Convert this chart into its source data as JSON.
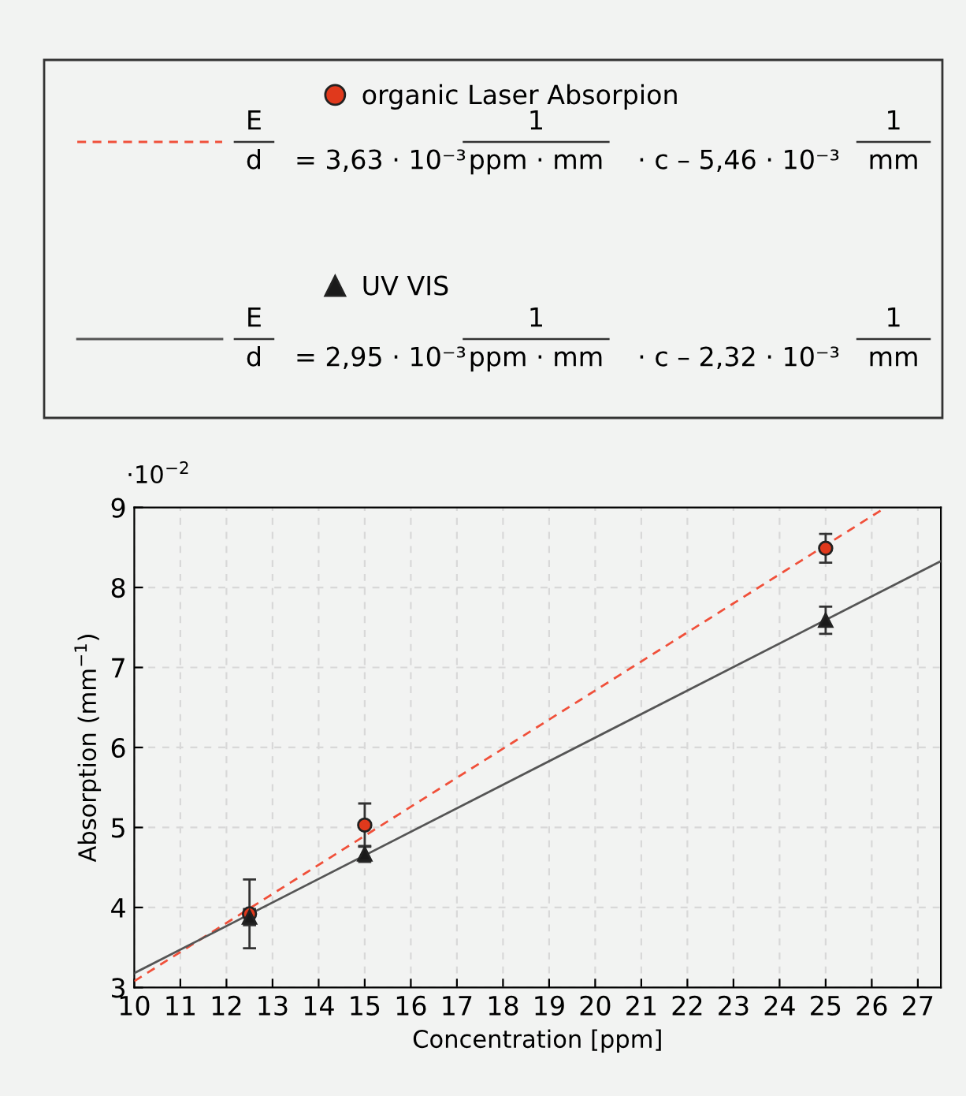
{
  "chart_data": {
    "type": "scatter",
    "xlabel": "Concentration [ppm]",
    "ylabel": "Absorption (mm$^{−1}$)",
    "xlim": [
      10,
      27.5
    ],
    "xticks": [
      10,
      11,
      12,
      13,
      14,
      15,
      16,
      17,
      18,
      19,
      20,
      21,
      22,
      23,
      24,
      25,
      26,
      27
    ],
    "ylim": [
      3,
      9
    ],
    "yticks": [
      3,
      4,
      5,
      6,
      7,
      8,
      9
    ],
    "grid": true,
    "legend": "top",
    "series": [
      {
        "name": "organic Laser Absorpion",
        "marker": "circle",
        "color": "#e0391c",
        "x": [
          12.5,
          15,
          25
        ],
        "values": [
          3.92,
          5.03,
          8.49
        ],
        "errors": [
          0.43,
          0.27,
          0.18
        ]
      },
      {
        "name": "UV VIS",
        "marker": "triangle",
        "color": "#1a1a1a",
        "x": [
          12.5,
          15,
          25
        ],
        "values": [
          3.88,
          4.67,
          7.59
        ],
        "errors": [
          0.1,
          0.1,
          0.17
        ]
      },
      {
        "type": "line",
        "line_style": "dashed",
        "color": "#f0503a",
        "x": [
          10,
          26.3
        ],
        "values": [
          3.08,
          9
        ]
      },
      {
        "type": "line",
        "line_style": "solid",
        "color": "#555555",
        "x": [
          10,
          27.5
        ],
        "values": [
          3.18,
          8.33
        ]
      }
    ],
    "annotations": [
      "E",
      "d",
      "= 3,63 · 10⁻³",
      "1",
      "ppm · mm",
      "· c – 5,46 · 10⁻³",
      "1",
      "mm",
      "E",
      "d",
      "= 2,95 · 10⁻³",
      "1",
      "ppm · mm",
      "· c – 2,32 · 10⁻³",
      "1",
      "mm",
      "·10$^{−2}$"
    ]
  }
}
